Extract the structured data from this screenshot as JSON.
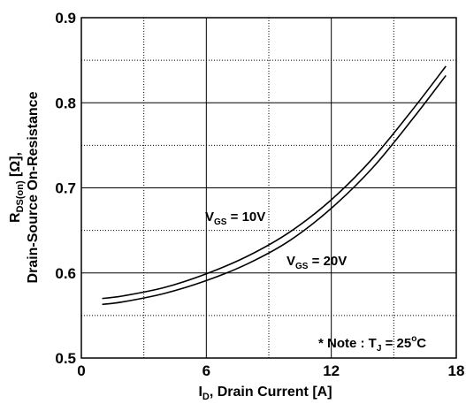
{
  "chart_data": {
    "type": "line",
    "xlabel": {
      "main": "I",
      "sub": "D",
      "rest": ", Drain Current [A]"
    },
    "ylabel": {
      "line1": {
        "main": "R",
        "sub": "DS(on)",
        "rest": " [Ω],"
      },
      "line2": "Drain-Source On-Resistance"
    },
    "xlim": [
      0,
      18
    ],
    "ylim": [
      0.5,
      0.9
    ],
    "x_ticks": [
      0,
      6,
      12,
      18
    ],
    "y_ticks": [
      0.5,
      0.6,
      0.7,
      0.8,
      0.9
    ],
    "x_tick_labels": [
      "0",
      "6",
      "12",
      "18"
    ],
    "y_tick_labels": [
      "0.5",
      "0.6",
      "0.7",
      "0.8",
      "0.9"
    ],
    "grid": {
      "major": "solid",
      "minor": "dotted"
    },
    "series": [
      {
        "label": {
          "main": "V",
          "sub": "GS",
          "rest": " = 10V"
        },
        "x": [
          1,
          2,
          4,
          6,
          8,
          10,
          12,
          14,
          16,
          17.5
        ],
        "y": [
          0.57,
          0.573,
          0.583,
          0.599,
          0.62,
          0.648,
          0.686,
          0.735,
          0.795,
          0.843
        ]
      },
      {
        "label": {
          "main": "V",
          "sub": "GS",
          "rest": " = 20V"
        },
        "x": [
          1,
          2,
          4,
          6,
          8,
          10,
          12,
          14,
          16,
          17.5
        ],
        "y": [
          0.563,
          0.566,
          0.576,
          0.591,
          0.611,
          0.638,
          0.676,
          0.724,
          0.784,
          0.832
        ]
      }
    ],
    "annotation": {
      "prefix": "* Note : T",
      "sub": "J",
      "mid": " = 25",
      "sup": "o",
      "suffix": "C"
    }
  }
}
